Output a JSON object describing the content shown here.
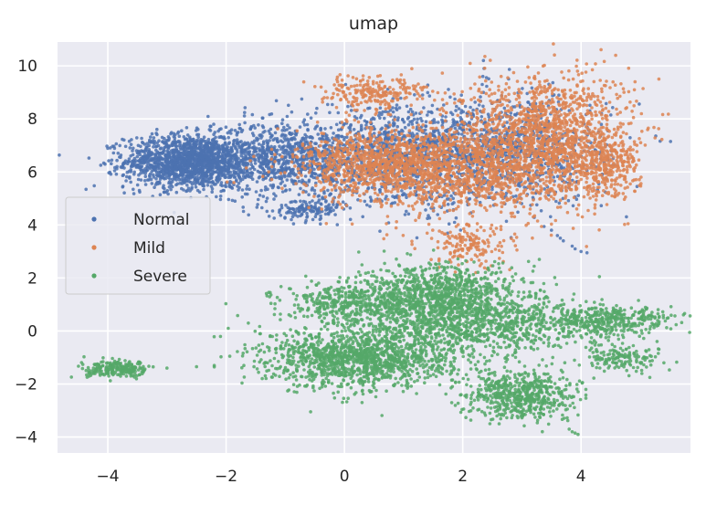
{
  "chart_data": {
    "type": "scatter",
    "title": "umap",
    "xlabel": "",
    "ylabel": "",
    "xlim": [
      -4.85,
      5.85
    ],
    "ylim": [
      -4.6,
      10.9
    ],
    "xticks": [
      -4,
      -2,
      0,
      2,
      4
    ],
    "yticks": [
      -4,
      -2,
      0,
      2,
      4,
      6,
      8,
      10
    ],
    "xtick_labels": [
      "−4",
      "−2",
      "0",
      "2",
      "4"
    ],
    "ytick_labels": [
      "−4",
      "−2",
      "0",
      "2",
      "4",
      "6",
      "8",
      "10"
    ],
    "grid": true,
    "legend_position": "center-left",
    "background": "#eaeaf2",
    "series": [
      {
        "name": "Normal",
        "color": "#4c72b0",
        "clusters": [
          {
            "cx": -2.6,
            "cy": 6.4,
            "sx": 0.55,
            "sy": 0.5,
            "n": 1600
          },
          {
            "cx": -1.0,
            "cy": 6.5,
            "sx": 0.6,
            "sy": 0.7,
            "n": 700
          },
          {
            "cx": 1.0,
            "cy": 6.6,
            "sx": 1.1,
            "sy": 0.9,
            "n": 1300
          },
          {
            "cx": 2.9,
            "cy": 6.8,
            "sx": 0.8,
            "sy": 1.0,
            "n": 700
          },
          {
            "cx": -0.6,
            "cy": 4.6,
            "sx": 0.3,
            "sy": 0.2,
            "n": 120
          }
        ],
        "points": [
          [
            2.35,
            10.2
          ],
          [
            2.36,
            9.9
          ],
          [
            2.34,
            9.6
          ],
          [
            2.33,
            9.3
          ],
          [
            2.35,
            9.0
          ],
          [
            3.6,
            3.6
          ],
          [
            3.7,
            3.4
          ],
          [
            3.85,
            3.2
          ],
          [
            4.0,
            3.0
          ],
          [
            4.1,
            2.95
          ],
          [
            3.5,
            3.8
          ],
          [
            3.65,
            3.5
          ],
          [
            3.9,
            3.1
          ]
        ]
      },
      {
        "name": "Mild",
        "color": "#dd8452",
        "clusters": [
          {
            "cx": 3.4,
            "cy": 7.3,
            "sx": 0.7,
            "sy": 1.2,
            "n": 1500
          },
          {
            "cx": 1.6,
            "cy": 6.1,
            "sx": 1.0,
            "sy": 0.8,
            "n": 1300
          },
          {
            "cx": 0.6,
            "cy": 6.4,
            "sx": 0.8,
            "sy": 0.5,
            "n": 500
          },
          {
            "cx": 0.5,
            "cy": 9.0,
            "sx": 0.45,
            "sy": 0.35,
            "n": 220
          },
          {
            "cx": 4.4,
            "cy": 6.2,
            "sx": 0.3,
            "sy": 0.6,
            "n": 250
          },
          {
            "cx": 2.1,
            "cy": 3.2,
            "sx": 0.35,
            "sy": 0.4,
            "n": 160
          }
        ],
        "points": [
          [
            1.6,
            2.4
          ],
          [
            1.8,
            2.6
          ],
          [
            2.0,
            2.8
          ]
        ]
      },
      {
        "name": "Severe",
        "color": "#55a868",
        "clusters": [
          {
            "cx": -3.8,
            "cy": -1.45,
            "sx": 0.28,
            "sy": 0.15,
            "n": 220
          },
          {
            "cx": 0.3,
            "cy": -1.0,
            "sx": 0.8,
            "sy": 0.55,
            "n": 1400
          },
          {
            "cx": 1.6,
            "cy": 1.4,
            "sx": 0.7,
            "sy": 0.55,
            "n": 900
          },
          {
            "cx": 0.1,
            "cy": 1.0,
            "sx": 0.6,
            "sy": 0.4,
            "n": 400
          },
          {
            "cx": 3.0,
            "cy": -2.4,
            "sx": 0.45,
            "sy": 0.45,
            "n": 600
          },
          {
            "cx": 2.2,
            "cy": 0.2,
            "sx": 1.0,
            "sy": 0.6,
            "n": 900
          },
          {
            "cx": 4.4,
            "cy": 0.4,
            "sx": 0.6,
            "sy": 0.3,
            "n": 400
          },
          {
            "cx": 4.7,
            "cy": -1.0,
            "sx": 0.35,
            "sy": 0.25,
            "n": 150
          }
        ],
        "points": [
          [
            3.8,
            -3.7
          ],
          [
            3.85,
            -3.8
          ],
          [
            3.9,
            -3.85
          ],
          [
            3.95,
            -3.9
          ],
          [
            -3.0,
            -1.4
          ],
          [
            -2.5,
            -1.35
          ],
          [
            -2.2,
            -1.3
          ],
          [
            -1.7,
            -1.3
          ],
          [
            -1.3,
            -1.2
          ],
          [
            5.4,
            -1.2
          ],
          [
            5.3,
            0.65
          ],
          [
            5.2,
            0.7
          ]
        ]
      }
    ]
  }
}
